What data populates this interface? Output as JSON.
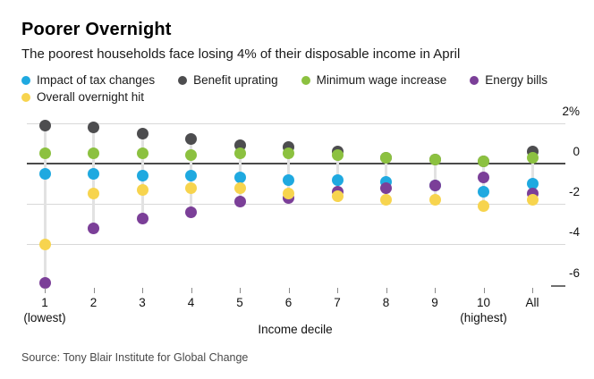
{
  "header": {
    "title": "Poorer Overnight",
    "subtitle": "The poorest households face losing 4% of their disposable income in April"
  },
  "source": "Source: Tony Blair Institute for Global Change",
  "chart_data": {
    "type": "scatter",
    "title": "Poorer Overnight",
    "subtitle": "The poorest households face losing 4% of their disposable income in April",
    "xlabel": "Income decile",
    "ylabel": "",
    "unit": "% of disposable income",
    "ylim": [
      -6.6,
      2.2
    ],
    "yticks": [
      {
        "label": "2%",
        "value": 2
      },
      {
        "label": "0",
        "value": 0
      },
      {
        "label": "-2",
        "value": -2
      },
      {
        "label": "-4",
        "value": -4
      },
      {
        "label": "-6",
        "value": -6
      }
    ],
    "grid": true,
    "legend_position": "top",
    "categories": [
      "1",
      "2",
      "3",
      "4",
      "5",
      "6",
      "7",
      "8",
      "9",
      "10",
      "All"
    ],
    "category_sublabels": [
      "(lowest)",
      "",
      "",
      "",
      "",
      "",
      "",
      "",
      "",
      "(highest)",
      ""
    ],
    "series": [
      {
        "name": "Impact of tax changes",
        "color": "#1FA9E0",
        "z": 3,
        "values": [
          -0.5,
          -0.5,
          -0.6,
          -0.6,
          -0.7,
          -0.8,
          -0.8,
          -0.9,
          -1.1,
          -1.4,
          -1.0
        ]
      },
      {
        "name": "Benefit uprating",
        "color": "#4D4D4F",
        "z": 1,
        "values": [
          1.9,
          1.8,
          1.5,
          1.2,
          0.9,
          0.8,
          0.6,
          0.3,
          0.2,
          0.1,
          0.6
        ]
      },
      {
        "name": "Minimum wage increase",
        "color": "#8CC140",
        "z": 2,
        "values": [
          0.5,
          0.5,
          0.5,
          0.4,
          0.5,
          0.5,
          0.4,
          0.3,
          0.2,
          0.1,
          0.3
        ]
      },
      {
        "name": "Energy bills",
        "color": "#7B3F98",
        "z": 4,
        "values": [
          -5.9,
          -3.2,
          -2.7,
          -2.4,
          -1.9,
          -1.7,
          -1.4,
          -1.2,
          -1.1,
          -0.7,
          -1.5
        ]
      },
      {
        "name": "Overall overnight hit",
        "color": "#F7D44E",
        "z": 5,
        "values": [
          -4.0,
          -1.5,
          -1.3,
          -1.2,
          -1.2,
          -1.5,
          -1.6,
          -1.8,
          -1.8,
          -2.1,
          -1.8
        ]
      }
    ]
  }
}
